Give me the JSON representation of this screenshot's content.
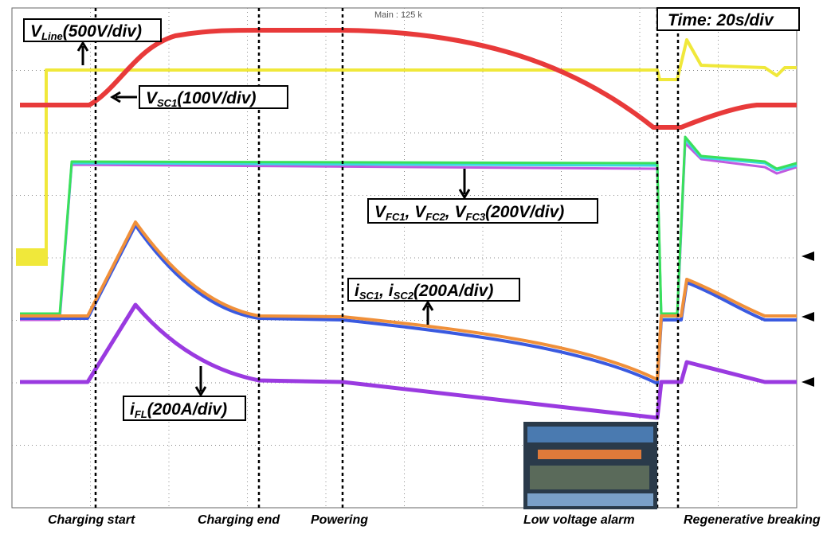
{
  "header": {
    "scope": "Main : 125 k",
    "timebase": "Time: 20s/div"
  },
  "labels": {
    "vline": [
      "V",
      "Line",
      "(500V/div)"
    ],
    "vsc": [
      "V",
      "SC1",
      "(100V/div)"
    ],
    "vfc": [
      "V",
      "FC1",
      ", V",
      "FC2",
      ", V",
      "FC3",
      "(200V/div)"
    ],
    "isc": [
      "i",
      "SC1",
      ", i",
      "SC2",
      "(200A/div)"
    ],
    "ifl": [
      "i",
      "FL",
      "(200A/div)"
    ]
  },
  "events": [
    "Charging start",
    "Charging end",
    "Powering",
    "Low voltage alarm",
    "Regenerative breaking"
  ]
}
